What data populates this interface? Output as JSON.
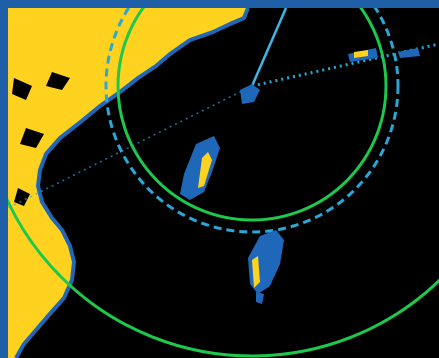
{
  "radar": {
    "colors": {
      "frame": "#1f5fa8",
      "background": "#000000",
      "land": "#ffd21f",
      "echo_blue": "#1f67b8",
      "range_ring": "#1ec84c",
      "bearing_line": "#2aa7d6",
      "heading_line": "#3ab7e6"
    }
  }
}
